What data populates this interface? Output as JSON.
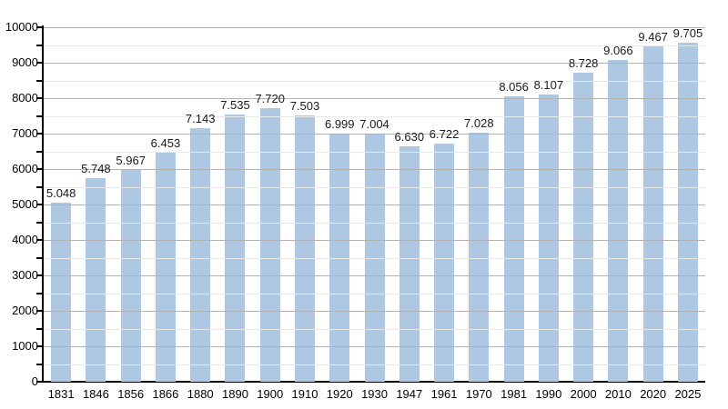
{
  "chart_data": {
    "type": "bar",
    "title": "",
    "xlabel": "",
    "ylabel": "",
    "categories": [
      "1831",
      "1846",
      "1856",
      "1866",
      "1880",
      "1890",
      "1900",
      "1910",
      "1920",
      "1930",
      "1947",
      "1961",
      "1970",
      "1981",
      "1990",
      "2000",
      "2010",
      "2020",
      "2025"
    ],
    "values": [
      5048,
      5748,
      5967,
      6453,
      7143,
      7535,
      7720,
      7503,
      6999,
      7004,
      6630,
      6722,
      7028,
      8056,
      8107,
      8728,
      9066,
      9467,
      9705
    ],
    "value_labels": [
      "5.048",
      "5.748",
      "5.967",
      "6.453",
      "7.143",
      "7.535",
      "7.720",
      "7.503",
      "6.999",
      "7.004",
      "6.630",
      "6.722",
      "7.028",
      "8.056",
      "8.107",
      "8.728",
      "9.066",
      "9.467",
      "9.705"
    ],
    "ylim": [
      0,
      10000
    ],
    "y_major_tick_step": 1000,
    "y_minor_tick_step": 500,
    "y_tick_labels": [
      "0",
      "1000",
      "2000",
      "3000",
      "4000",
      "5000",
      "6000",
      "7000",
      "8000",
      "9000",
      "10000"
    ],
    "grid": "horizontal major and minor lines, drawn over bars",
    "legend": "none",
    "bar_color": "#aec8e3",
    "major_grid_color": "#b2b2b2",
    "minor_grid_color": "#e9e9e9",
    "axis_color": "#000000",
    "label_color": "#1a1a1a",
    "background_color": "#ffffff"
  }
}
